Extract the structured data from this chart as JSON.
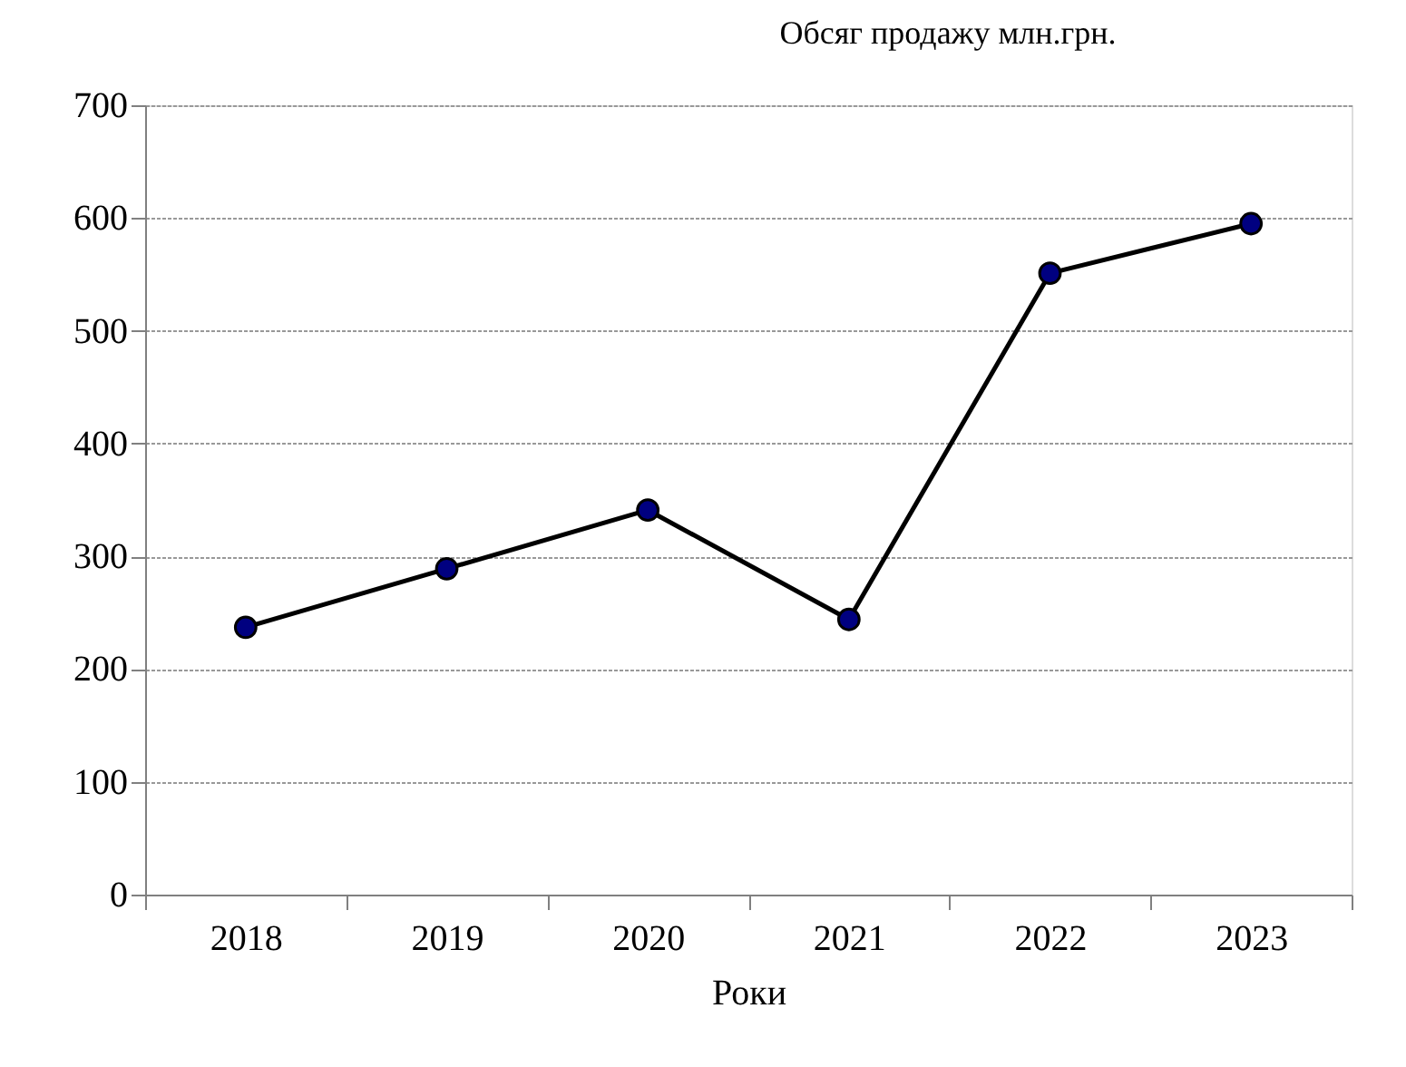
{
  "chart_data": {
    "type": "line",
    "title": "Обсяг продажу млн.грн.",
    "xlabel": "Роки",
    "categories": [
      "2018",
      "2019",
      "2020",
      "2021",
      "2022",
      "2023"
    ],
    "series": [
      {
        "color": "#000080",
        "values": [
          237,
          289,
          341,
          244,
          551,
          595
        ]
      }
    ],
    "ylim": [
      0,
      700
    ],
    "yticks": [
      0,
      100,
      200,
      300,
      400,
      500,
      600,
      700
    ],
    "grid": "y",
    "marker": "circle",
    "line_style": "solid"
  }
}
